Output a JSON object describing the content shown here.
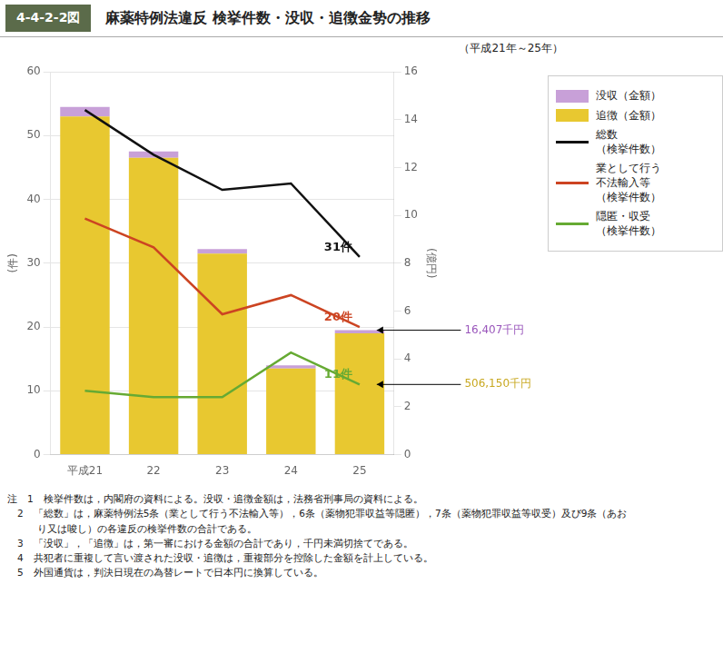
{
  "chart_data": {
    "type": "bar",
    "figure_number": "4-4-2-2図",
    "title": "麻薬特例法違反 検挙件数・没収・追徴金㔟の推移",
    "subtitle": "（平成21年～25年）",
    "categories": [
      "平成21",
      "22",
      "23",
      "24",
      "25"
    ],
    "ylabel": "(件)",
    "y2label": "(億円)",
    "ylim": [
      0,
      60
    ],
    "yticks": [
      0,
      10,
      20,
      30,
      40,
      50,
      60
    ],
    "y2lim": [
      0,
      16
    ],
    "y2ticks": [
      0,
      2,
      4,
      6,
      8,
      10,
      12,
      14,
      16
    ],
    "stacked": true,
    "grid": true,
    "legend": "right",
    "series": [
      {
        "name": "追徴（金額）",
        "type": "bar",
        "color": "#E8C830",
        "values": [
          53.0,
          46.5,
          31.5,
          13.5,
          19.0
        ]
      },
      {
        "name": "没収（金額）",
        "type": "bar",
        "color": "#C8A0D8",
        "values": [
          1.5,
          1.0,
          0.7,
          0.5,
          0.5
        ]
      },
      {
        "name": "総数\n（検挙件数）",
        "type": "line",
        "color": "#111111",
        "values": [
          54,
          47,
          41.5,
          42.5,
          31
        ],
        "value_labels": [
          null,
          null,
          null,
          null,
          "31件"
        ]
      },
      {
        "name": "業として行う\n不法輸入等\n（検挙件数）",
        "type": "line",
        "color": "#CC4422",
        "values": [
          37,
          32.5,
          22,
          25,
          20
        ],
        "value_labels": [
          null,
          null,
          null,
          null,
          "20件"
        ]
      },
      {
        "name": "隠匿・収受\n（検挙件数）",
        "type": "line",
        "color": "#66AA33",
        "values": [
          10,
          9,
          9,
          16,
          11
        ],
        "value_labels": [
          null,
          null,
          null,
          null,
          "11件"
        ]
      }
    ],
    "annotations": [
      {
        "text": "16,407千円",
        "color": "#9955BB",
        "series": "没収（金額）"
      },
      {
        "text": "506,150千円",
        "color": "#C8A820",
        "series": "隠匿・収受\n（検挙件数）"
      }
    ],
    "notes": [
      "注　1　検挙件数は，内閣府の資料による。没収・追徴金額は，法務省刑事局の資料による。",
      "　2　「総数」は，麻薬特例法5条（業として行う不法輸入等），6条（薬物犯罪収益等隠匿），7条（薬物犯罪収益等収受）及び9条（あお",
      "　　　り又は唆し）の各違反の検挙件数の合計である。",
      "　3　「没収」，「追徴」は，第一審における金額の合計であり，千円未満切捨てである。",
      "　4　共犯者に重複して言い渡された没収・追徴は，重複部分を控除した金額を計上している。",
      "　5　外国通貨は，判決日現在の為替レートで日本円に換算している。"
    ]
  }
}
